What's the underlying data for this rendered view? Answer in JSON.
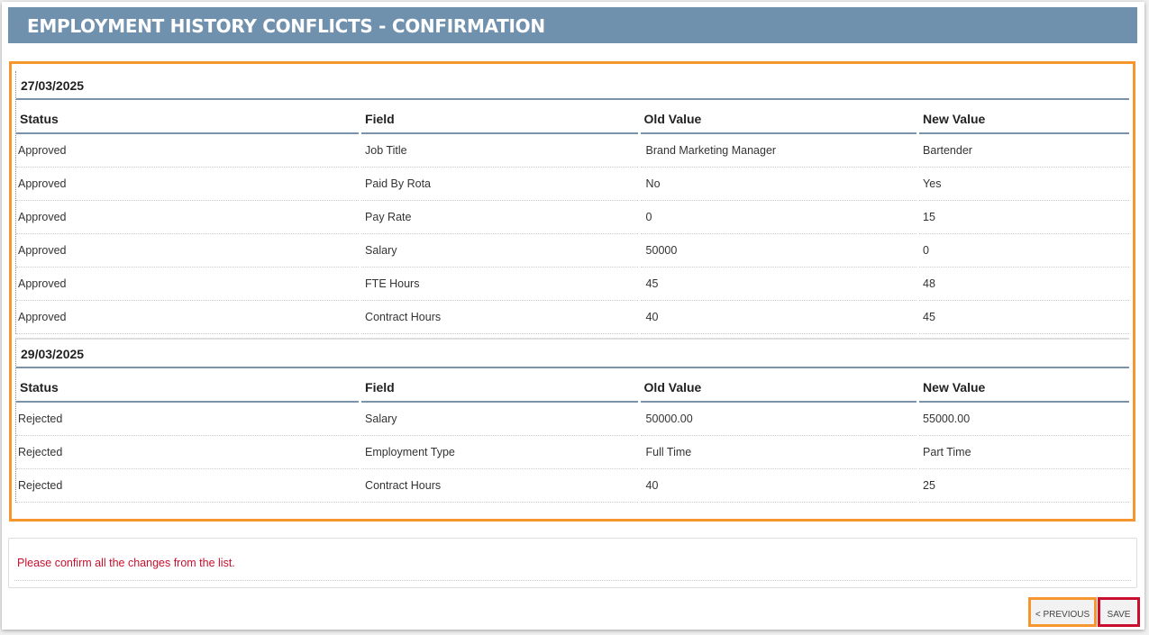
{
  "title": "EMPLOYMENT HISTORY CONFLICTS - CONFIRMATION",
  "columns": [
    "Status",
    "Field",
    "Old Value",
    "New Value"
  ],
  "sections": [
    {
      "date": "27/03/2025",
      "rows": [
        [
          "Approved",
          "Job Title",
          "Brand Marketing Manager",
          "Bartender"
        ],
        [
          "Approved",
          "Paid By Rota",
          "No",
          "Yes"
        ],
        [
          "Approved",
          "Pay Rate",
          "0",
          "15"
        ],
        [
          "Approved",
          "Salary",
          "50000",
          "0"
        ],
        [
          "Approved",
          "FTE Hours",
          "45",
          "48"
        ],
        [
          "Approved",
          "Contract Hours",
          "40",
          "45"
        ]
      ]
    },
    {
      "date": "29/03/2025",
      "rows": [
        [
          "Rejected",
          "Salary",
          "50000.00",
          "55000.00"
        ],
        [
          "Rejected",
          "Employment Type",
          "Full Time",
          "Part Time"
        ],
        [
          "Rejected",
          "Contract Hours",
          "40",
          "25"
        ]
      ]
    }
  ],
  "message": "Please confirm all the changes from the list.",
  "buttons": {
    "previous": "< PREVIOUS",
    "save": "SAVE"
  },
  "colors": {
    "header": "#7091ad",
    "highlight_orange": "#f7962e",
    "highlight_red": "#c8102e",
    "message": "#c8102e"
  }
}
